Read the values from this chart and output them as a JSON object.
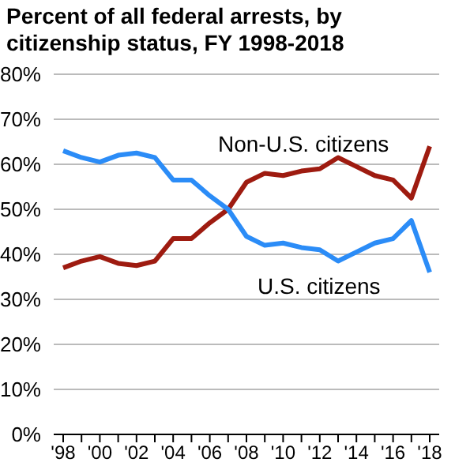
{
  "chart_data": {
    "type": "line",
    "title": "Percent of all federal arrests, by citizenship status, FY 1998-2018",
    "categories": [
      "'98",
      null,
      "'00",
      null,
      "'02",
      null,
      "'04",
      null,
      "'06",
      null,
      "'08",
      null,
      "'10",
      null,
      "'12",
      null,
      "'14",
      null,
      "'16",
      null,
      "'18"
    ],
    "series": [
      {
        "name": "Non-U.S. citizens",
        "color": "#9e1b10",
        "values": [
          37,
          38.5,
          39.5,
          38,
          37.5,
          38.5,
          43.5,
          43.5,
          47,
          50,
          56,
          58,
          57.5,
          58.5,
          59,
          61.5,
          59.5,
          57.5,
          56.5,
          52.5,
          64
        ]
      },
      {
        "name": "U.S. citizens",
        "color": "#2b8cf7",
        "values": [
          63,
          61.5,
          60.5,
          62,
          62.5,
          61.5,
          56.5,
          56.5,
          53,
          50,
          44,
          42,
          42.5,
          41.5,
          41,
          38.5,
          40.5,
          42.5,
          43.5,
          47.5,
          36
        ]
      }
    ],
    "ylim": [
      0,
      80
    ],
    "yticks": [
      {
        "value": 0,
        "label": "0%"
      },
      {
        "value": 10,
        "label": "10%"
      },
      {
        "value": 20,
        "label": "20%"
      },
      {
        "value": 30,
        "label": "30%"
      },
      {
        "value": 40,
        "label": "40%"
      },
      {
        "value": 50,
        "label": "50%"
      },
      {
        "value": 60,
        "label": "60%"
      },
      {
        "value": 70,
        "label": "70%"
      },
      {
        "value": 80,
        "label": "80%"
      }
    ],
    "grid": "y",
    "legend": false,
    "marker": "none",
    "line_style": "solid"
  }
}
